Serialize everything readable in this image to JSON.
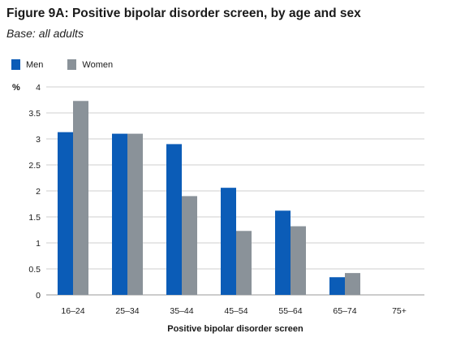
{
  "header": {
    "title": "Figure 9A: Positive bipolar disorder screen, by age and sex",
    "subtitle": "Base: all adults"
  },
  "chart_data": {
    "type": "bar",
    "title": "Figure 9A: Positive bipolar disorder screen, by age and sex",
    "subtitle": "Base: all adults",
    "xlabel": "Positive bipolar disorder screen",
    "ylabel": "%",
    "ylim": [
      0,
      4
    ],
    "yticks": [
      "0",
      "0.5",
      "1",
      "1.5",
      "2",
      "2.5",
      "3",
      "3.5",
      "4"
    ],
    "grid": true,
    "legend_position": "top-left",
    "categories": [
      "16–24",
      "25–34",
      "35–44",
      "45–54",
      "55–64",
      "65–74",
      "75+"
    ],
    "series": [
      {
        "name": "Men",
        "color": "#0b5cb7",
        "values": [
          3.13,
          3.1,
          2.9,
          2.06,
          1.62,
          0.34,
          0
        ]
      },
      {
        "name": "Women",
        "color": "#8a9299",
        "values": [
          3.73,
          3.1,
          1.9,
          1.23,
          1.32,
          0.42,
          0
        ]
      }
    ]
  }
}
